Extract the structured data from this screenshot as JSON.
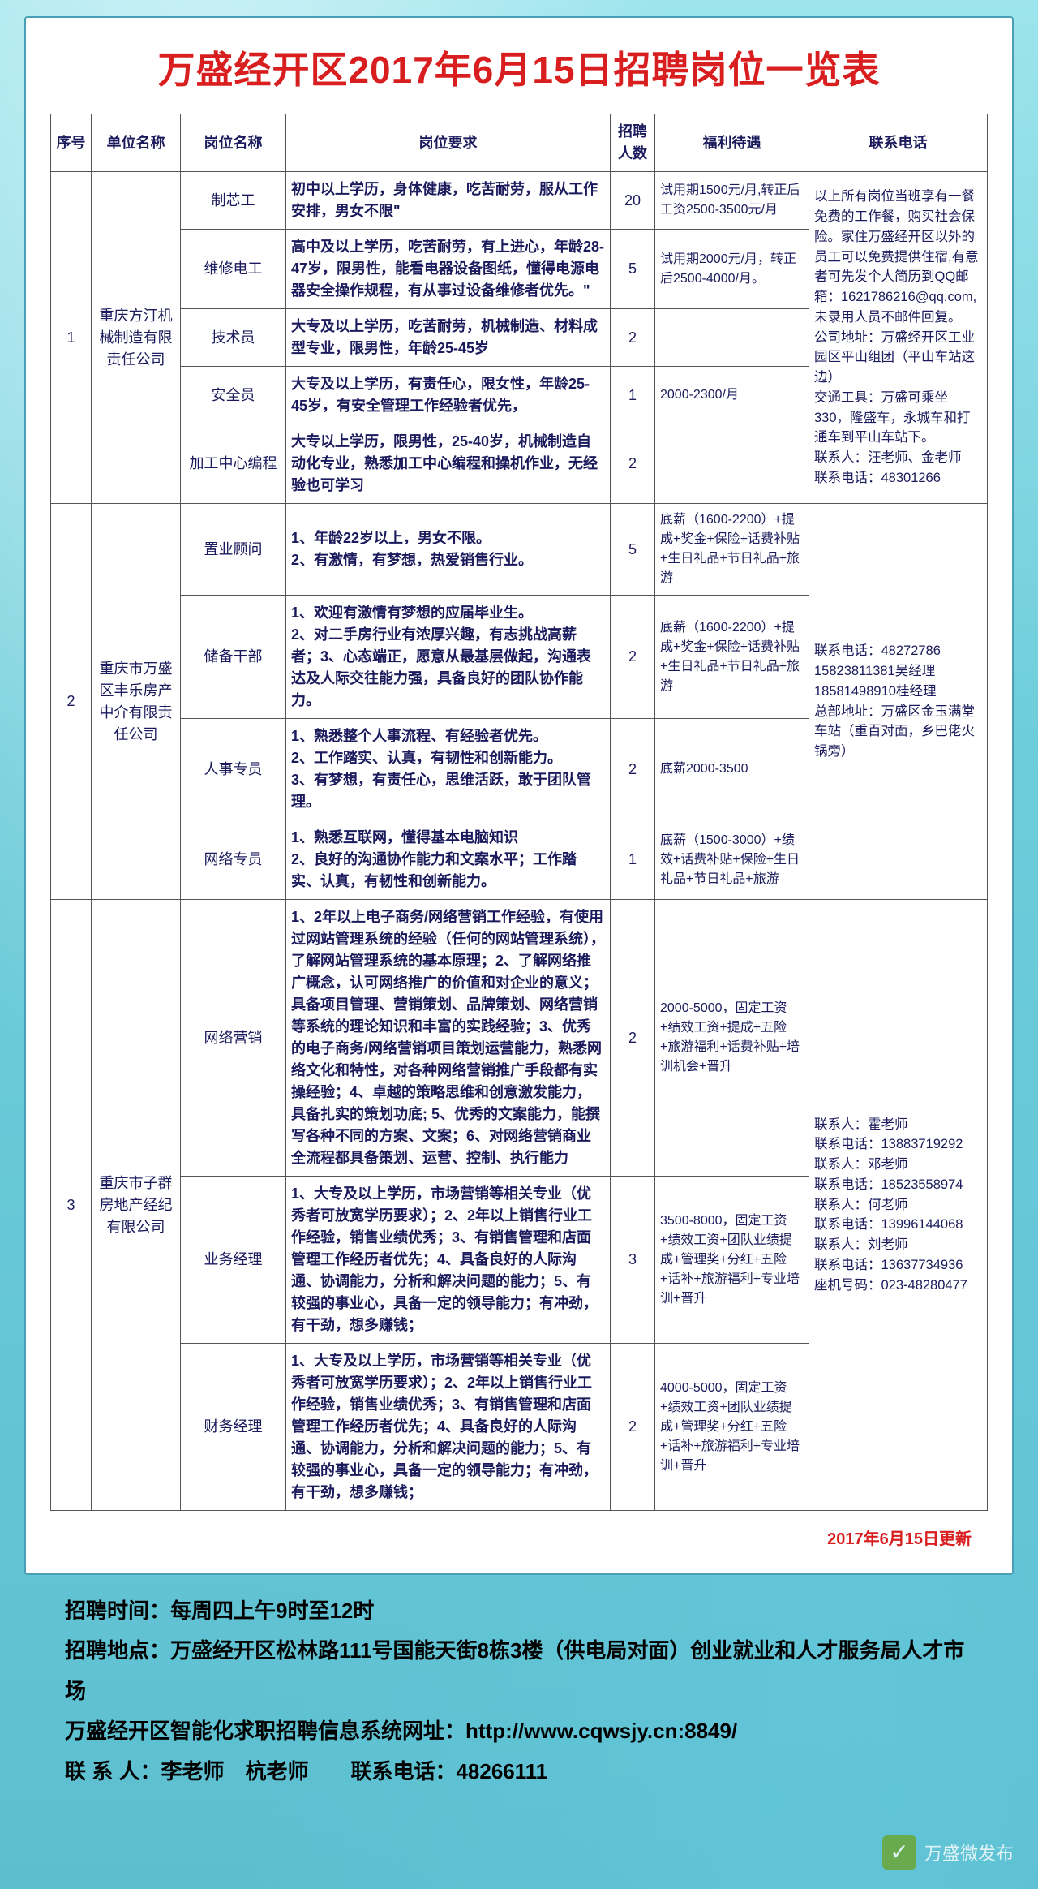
{
  "title": "万盛经开区2017年6月15日招聘岗位一览表",
  "headers": {
    "seq": "序号",
    "company": "单位名称",
    "position": "岗位名称",
    "requirement": "岗位要求",
    "number": "招聘人数",
    "benefit": "福利待遇",
    "contact": "联系电话"
  },
  "groups": [
    {
      "seq": "1",
      "company": "重庆方汀机械制造有限责任公司",
      "contact": "以上所有岗位当班享有一餐免费的工作餐，购买社会保险。家住万盛经开区以外的员工可以免费提供住宿,有意者可先发个人简历到QQ邮箱：1621786216@qq.com,未录用人员不邮件回复。\n公司地址：万盛经开区工业园区平山组团（平山车站这边）\n交通工具：万盛可乘坐330，隆盛车，永城车和打通车到平山车站下。\n联系人：汪老师、金老师　　联系电话：48301266",
      "rows": [
        {
          "pos": "制芯工",
          "req": "初中以上学历，身体健康，吃苦耐劳，服从工作安排，男女不限\"",
          "num": "20",
          "ben": "试用期1500元/月,转正后工资2500-3500元/月"
        },
        {
          "pos": "维修电工",
          "req": "高中及以上学历，吃苦耐劳，有上进心，年龄28-47岁，限男性，能看电器设备图纸，懂得电源电器安全操作规程，有从事过设备维修者优先。\"",
          "num": "5",
          "ben": "试用期2000元/月，转正后2500-4000/月。"
        },
        {
          "pos": "技术员",
          "req": "大专及以上学历，吃苦耐劳，机械制造、材料成型专业，限男性，年龄25-45岁",
          "num": "2",
          "ben": ""
        },
        {
          "pos": "安全员",
          "req": "大专及以上学历，有责任心，限女性，年龄25-45岁，有安全管理工作经验者优先，",
          "num": "1",
          "ben": "2000-2300/月"
        },
        {
          "pos": "加工中心编程",
          "req": "大专以上学历，限男性，25-40岁，机械制造自动化专业，熟悉加工中心编程和操机作业，无经验也可学习",
          "num": "2",
          "ben": ""
        }
      ]
    },
    {
      "seq": "2",
      "company": "重庆市万盛区丰乐房产中介有限责任公司",
      "contact": "联系电话：48272786\n15823811381吴经理\n18581498910桂经理\n总部地址：万盛区金玉满堂车站（重百对面，乡巴佬火锅旁）",
      "rows": [
        {
          "pos": "置业顾问",
          "req": "1、年龄22岁以上，男女不限。\n2、有激情，有梦想，热爱销售行业。",
          "num": "5",
          "ben": "底薪（1600-2200）+提成+奖金+保险+话费补贴+生日礼品+节日礼品+旅游"
        },
        {
          "pos": "储备干部",
          "req": "1、欢迎有激情有梦想的应届毕业生。\n2、对二手房行业有浓厚兴趣，有志挑战高薪者；3、心态端正，愿意从最基层做起，沟通表达及人际交往能力强，具备良好的团队协作能力。",
          "num": "2",
          "ben": "底薪（1600-2200）+提成+奖金+保险+话费补贴+生日礼品+节日礼品+旅游"
        },
        {
          "pos": "人事专员",
          "req": "1、熟悉整个人事流程、有经验者优先。\n2、工作踏实、认真，有韧性和创新能力。\n3、有梦想，有责任心，思维活跃，敢于团队管理。",
          "num": "2",
          "ben": "底薪2000-3500"
        },
        {
          "pos": "网络专员",
          "req": "1、熟悉互联网，懂得基本电脑知识\n2、良好的沟通协作能力和文案水平；工作踏实、认真，有韧性和创新能力。",
          "num": "1",
          "ben": "底薪（1500-3000）+绩效+话费补贴+保险+生日礼品+节日礼品+旅游"
        }
      ]
    },
    {
      "seq": "3",
      "company": "重庆市子群房地产经纪有限公司",
      "contact": "联系人：霍老师\n联系电话：13883719292\n联系人：邓老师\n联系电话：18523558974\n联系人：何老师\n联系电话：13996144068\n联系人：刘老师\n联系电话：13637734936\n座机号码：023-48280477",
      "rows": [
        {
          "pos": "网络营销",
          "req": "1、2年以上电子商务/网络营销工作经验，有使用过网站管理系统的经验（任何的网站管理系统），了解网站管理系统的基本原理；2、了解网络推广概念，认可网络推广的价值和对企业的意义；具备项目管理、营销策划、品牌策划、网络营销等系统的理论知识和丰富的实践经验；3、优秀的电子商务/网络营销项目策划运营能力，熟悉网络文化和特性，对各种网络营销推广手段都有实操经验；4、卓越的策略思维和创意激发能力，具备扎实的策划功底; 5、优秀的文案能力，能撰写各种不同的方案、文案；6、对网络营销商业全流程都具备策划、运营、控制、执行能力",
          "num": "2",
          "ben": "2000-5000，固定工资+绩效工资+提成+五险+旅游福利+话费补贴+培训机会+晋升"
        },
        {
          "pos": "业务经理",
          "req": "1、大专及以上学历，市场营销等相关专业（优秀者可放宽学历要求）；2、2年以上销售行业工作经验，销售业绩优秀；3、有销售管理和店面管理工作经历者优先；4、具备良好的人际沟通、协调能力，分析和解决问题的能力；5、有较强的事业心，具备一定的领导能力；有冲劲，有干劲，想多赚钱；",
          "num": "3",
          "ben": "3500-8000，固定工资+绩效工资+团队业绩提成+管理奖+分红+五险+话补+旅游福利+专业培训+晋升"
        },
        {
          "pos": "财务经理",
          "req": "1、大专及以上学历，市场营销等相关专业（优秀者可放宽学历要求）；2、2年以上销售行业工作经验，销售业绩优秀；3、有销售管理和店面管理工作经历者优先；4、具备良好的人际沟通、协调能力，分析和解决问题的能力；5、有较强的事业心，具备一定的领导能力；有冲劲，有干劲，想多赚钱；",
          "num": "2",
          "ben": "4000-5000，固定工资+绩效工资+团队业绩提成+管理奖+分红+五险+话补+旅游福利+专业培训+晋升"
        }
      ]
    }
  ],
  "update_note": "2017年6月15日更新",
  "footer": {
    "l1": "招聘时间：每周四上午9时至12时",
    "l2": "招聘地点：万盛经开区松林路111号国能天街8栋3楼（供电局对面）创业就业和人才服务局人才市场",
    "l3": "万盛经开区智能化求职招聘信息系统网址：http://www.cqwsjy.cn:8849/",
    "l4": "联 系 人：李老师　杭老师　　联系电话：48266111"
  },
  "watermark": "万盛微发布"
}
